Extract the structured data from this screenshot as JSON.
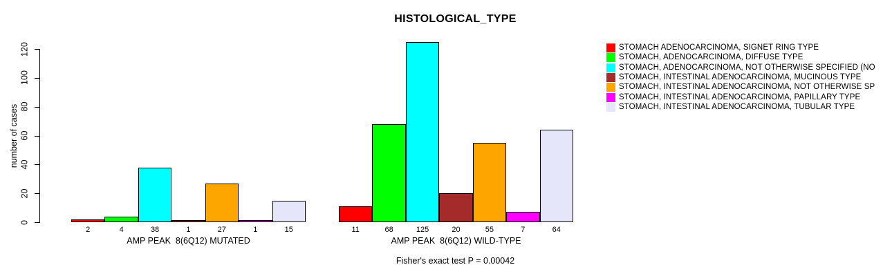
{
  "chart_data": {
    "type": "bar",
    "title": "HISTOLOGICAL_TYPE",
    "ylabel": "number of cases",
    "xlabel": "",
    "ylim": [
      0,
      125
    ],
    "yticks": [
      0,
      20,
      40,
      60,
      80,
      100,
      120
    ],
    "grid": false,
    "legend_position": "right",
    "background_color": "#ffffff",
    "axis_color": "#000000",
    "groups": [
      {
        "label": "AMP PEAK  8(6Q12) MUTATED"
      },
      {
        "label": "AMP PEAK  8(6Q12) WILD-TYPE"
      }
    ],
    "series": [
      {
        "name": "STOMACH ADENOCARCINOMA, SIGNET RING TYPE",
        "color": "#FF0000",
        "values": [
          2,
          11
        ]
      },
      {
        "name": "STOMACH, ADENOCARCINOMA, DIFFUSE TYPE",
        "color": "#00FF00",
        "values": [
          4,
          68
        ]
      },
      {
        "name": "STOMACH, ADENOCARCINOMA, NOT OTHERWISE SPECIFIED (NO",
        "color": "#00FFFF",
        "values": [
          38,
          125
        ]
      },
      {
        "name": "STOMACH, INTESTINAL ADENOCARCINOMA, MUCINOUS TYPE",
        "color": "#A52A2A",
        "values": [
          1,
          20
        ]
      },
      {
        "name": "STOMACH, INTESTINAL ADENOCARCINOMA, NOT OTHERWISE SP",
        "color": "#FFA500",
        "values": [
          27,
          55
        ]
      },
      {
        "name": "STOMACH, INTESTINAL ADENOCARCINOMA, PAPILLARY TYPE",
        "color": "#FF00FF",
        "values": [
          1,
          7
        ]
      },
      {
        "name": "STOMACH, INTESTINAL ADENOCARCINOMA, TUBULAR TYPE",
        "color": "#E6E6FA",
        "values": [
          15,
          64
        ]
      }
    ],
    "bar_value_labels": true,
    "annotation": "Fisher's exact test P = 0.00042"
  }
}
